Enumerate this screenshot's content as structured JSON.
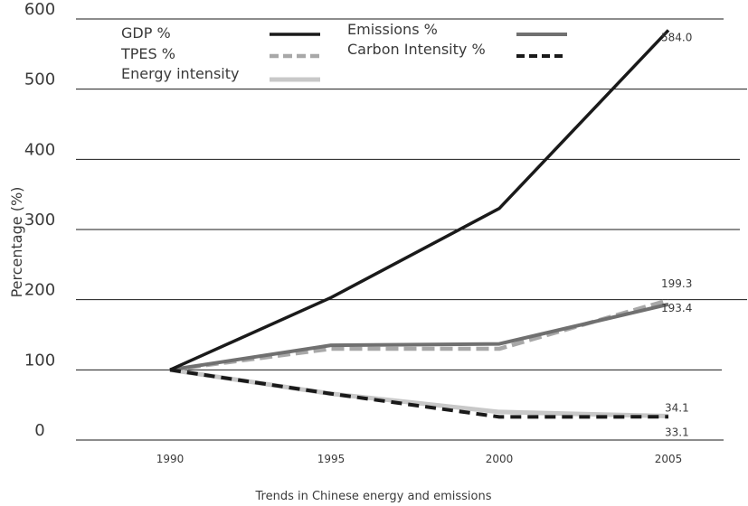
{
  "chart_data": {
    "type": "line",
    "caption": "Trends in Chinese energy and emissions",
    "ylabel": "Percentage (%)",
    "xlabel": "",
    "categories": [
      "1990",
      "1995",
      "2000",
      "2005"
    ],
    "ylim": [
      0,
      600
    ],
    "yticks": [
      0,
      100,
      200,
      300,
      400,
      500,
      600
    ],
    "grid": "horizontal",
    "legend_position": "top-left",
    "series": [
      {
        "name": "GDP %",
        "values": [
          100,
          203,
          330,
          584.0
        ],
        "color": "#1a1a1a",
        "dash": "solid"
      },
      {
        "name": "Emissions %",
        "values": [
          100,
          135,
          137,
          193.4
        ],
        "color": "#707070",
        "dash": "solid"
      },
      {
        "name": "TPES %",
        "values": [
          100,
          130,
          130,
          199.3
        ],
        "color": "#a8a8a8",
        "dash": "dashed"
      },
      {
        "name": "Carbon Intensity %",
        "values": [
          100,
          66,
          33,
          33.1
        ],
        "color": "#1a1a1a",
        "dash": "dashed"
      },
      {
        "name": "Energy intensity",
        "values": [
          100,
          66,
          40,
          34.1
        ],
        "color": "#c8c8c8",
        "dash": "solid"
      }
    ],
    "data_labels": [
      {
        "text": "584.0",
        "series": "GDP %"
      },
      {
        "text": "199.3",
        "series": "TPES %"
      },
      {
        "text": "193.4",
        "series": "Emissions %"
      },
      {
        "text": "34.1",
        "series": "Energy intensity"
      },
      {
        "text": "33.1",
        "series": "Carbon Intensity %"
      }
    ]
  }
}
